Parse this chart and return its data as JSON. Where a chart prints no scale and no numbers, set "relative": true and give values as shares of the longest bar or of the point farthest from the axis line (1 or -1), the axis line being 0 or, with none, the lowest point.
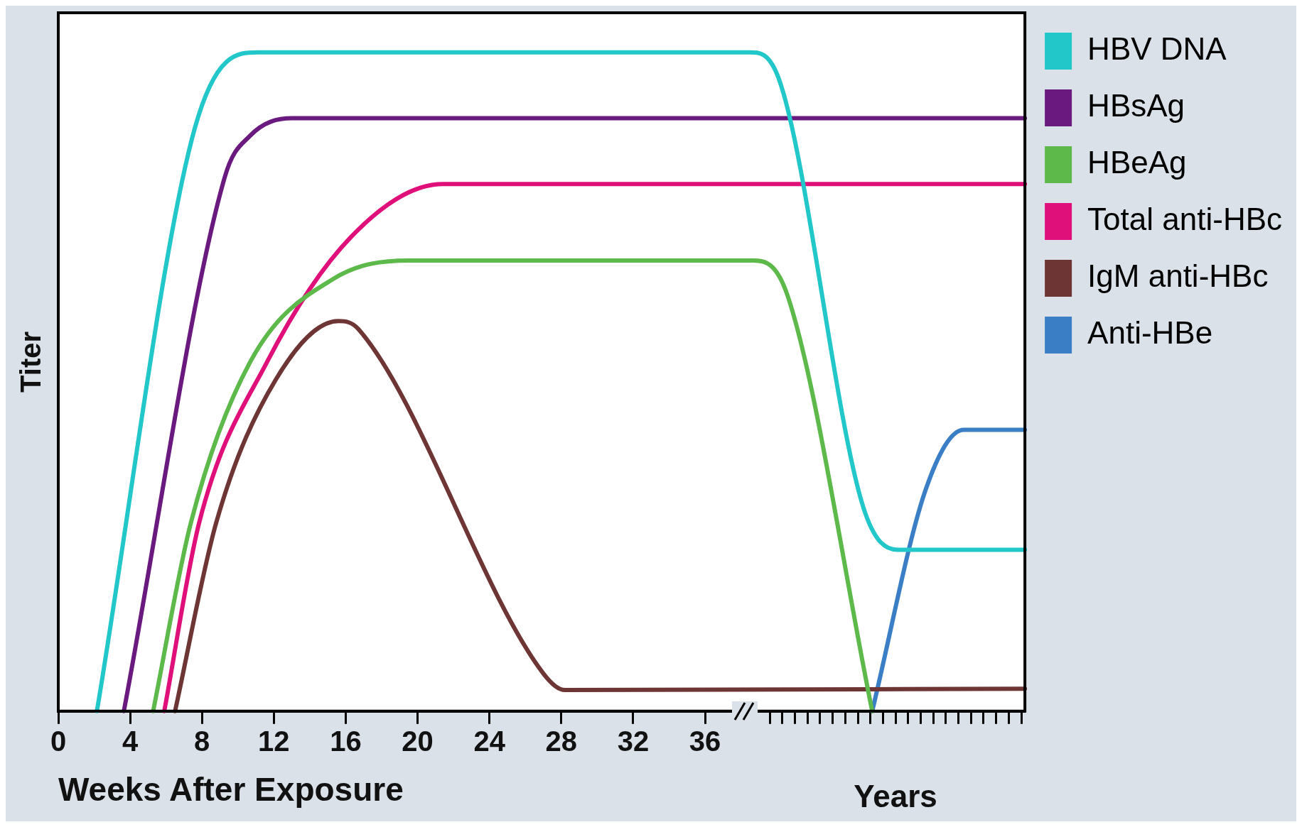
{
  "chart_data": {
    "type": "line",
    "relative": true,
    "ylabel": "Titer",
    "xlabel": "Weeks After Exposure",
    "annotations": [
      "Years"
    ],
    "legend": "top right",
    "grid": false,
    "marker": "none",
    "line_style": "solid",
    "tick_labels": "x",
    "xlim": [
      0,
      53.8
    ],
    "xticks": [
      0,
      4,
      8,
      12,
      16,
      20,
      24,
      28,
      32,
      36,
      {
        "value": 39.6,
        "label": null
      },
      {
        "value": 40.3,
        "label": null
      },
      {
        "value": 41,
        "label": null
      },
      {
        "value": 41.7,
        "label": null
      },
      {
        "value": 42.4,
        "label": null
      },
      {
        "value": 43.1,
        "label": null
      },
      {
        "value": 43.8,
        "label": null
      },
      {
        "value": 44.5,
        "label": null
      },
      {
        "value": 45.2,
        "label": null
      },
      {
        "value": 45.9,
        "label": null
      },
      {
        "value": 46.6,
        "label": null
      },
      {
        "value": 47.3,
        "label": null
      },
      {
        "value": 48,
        "label": null
      },
      {
        "value": 48.7,
        "label": null
      },
      {
        "value": 49.4,
        "label": null
      },
      {
        "value": 50.1,
        "label": null
      },
      {
        "value": 50.8,
        "label": null
      },
      {
        "value": 51.5,
        "label": null
      },
      {
        "value": 52.2,
        "label": null
      },
      {
        "value": 52.9,
        "label": null
      },
      {
        "value": 53.6,
        "label": null
      }
    ],
    "series": [
      {
        "name": "HBV DNA",
        "color": "#22c7c9",
        "x": [
          2.15,
          7.6,
          11.1,
          38.5,
          40.1,
          44.8,
          46.7,
          53.8
        ],
        "values": [
          0,
          0.885,
          1,
          1,
          0.96,
          0.31,
          0.245,
          0.245
        ]
      },
      {
        "name": "HBsAg",
        "color": "#6a1a7e",
        "x": [
          3.65,
          9.26,
          10.66,
          13,
          53.8
        ],
        "values": [
          0,
          0.81,
          0.873,
          0.9,
          0.9
        ]
      },
      {
        "name": "HBeAg",
        "color": "#5cb94a",
        "x": [
          5.28,
          7.39,
          10.66,
          15.3,
          19.5,
          38.7,
          40.6,
          45.3
        ],
        "values": [
          0,
          0.287,
          0.529,
          0.656,
          0.684,
          0.684,
          0.63,
          0
        ]
      },
      {
        "name": "Total anti-HBc",
        "color": "#e0107a",
        "x": [
          5.9,
          7.85,
          11.6,
          16.3,
          21.4,
          53.8
        ],
        "values": [
          0,
          0.287,
          0.529,
          0.72,
          0.8,
          0.8
        ]
      },
      {
        "name": "IgM anti-HBc",
        "color": "#6e3535",
        "x": [
          6.5,
          8.8,
          12.1,
          15.6,
          16.7,
          27,
          28.2,
          53.8
        ],
        "values": [
          0,
          0.287,
          0.503,
          0.592,
          0.58,
          0.057,
          0.032,
          0.034
        ]
      },
      {
        "name": "Anti-HBe",
        "color": "#3a7fc6",
        "x": [
          45.3,
          48.3,
          50.4,
          53.8
        ],
        "values": [
          0,
          0.338,
          0.427,
          0.427
        ]
      }
    ]
  }
}
